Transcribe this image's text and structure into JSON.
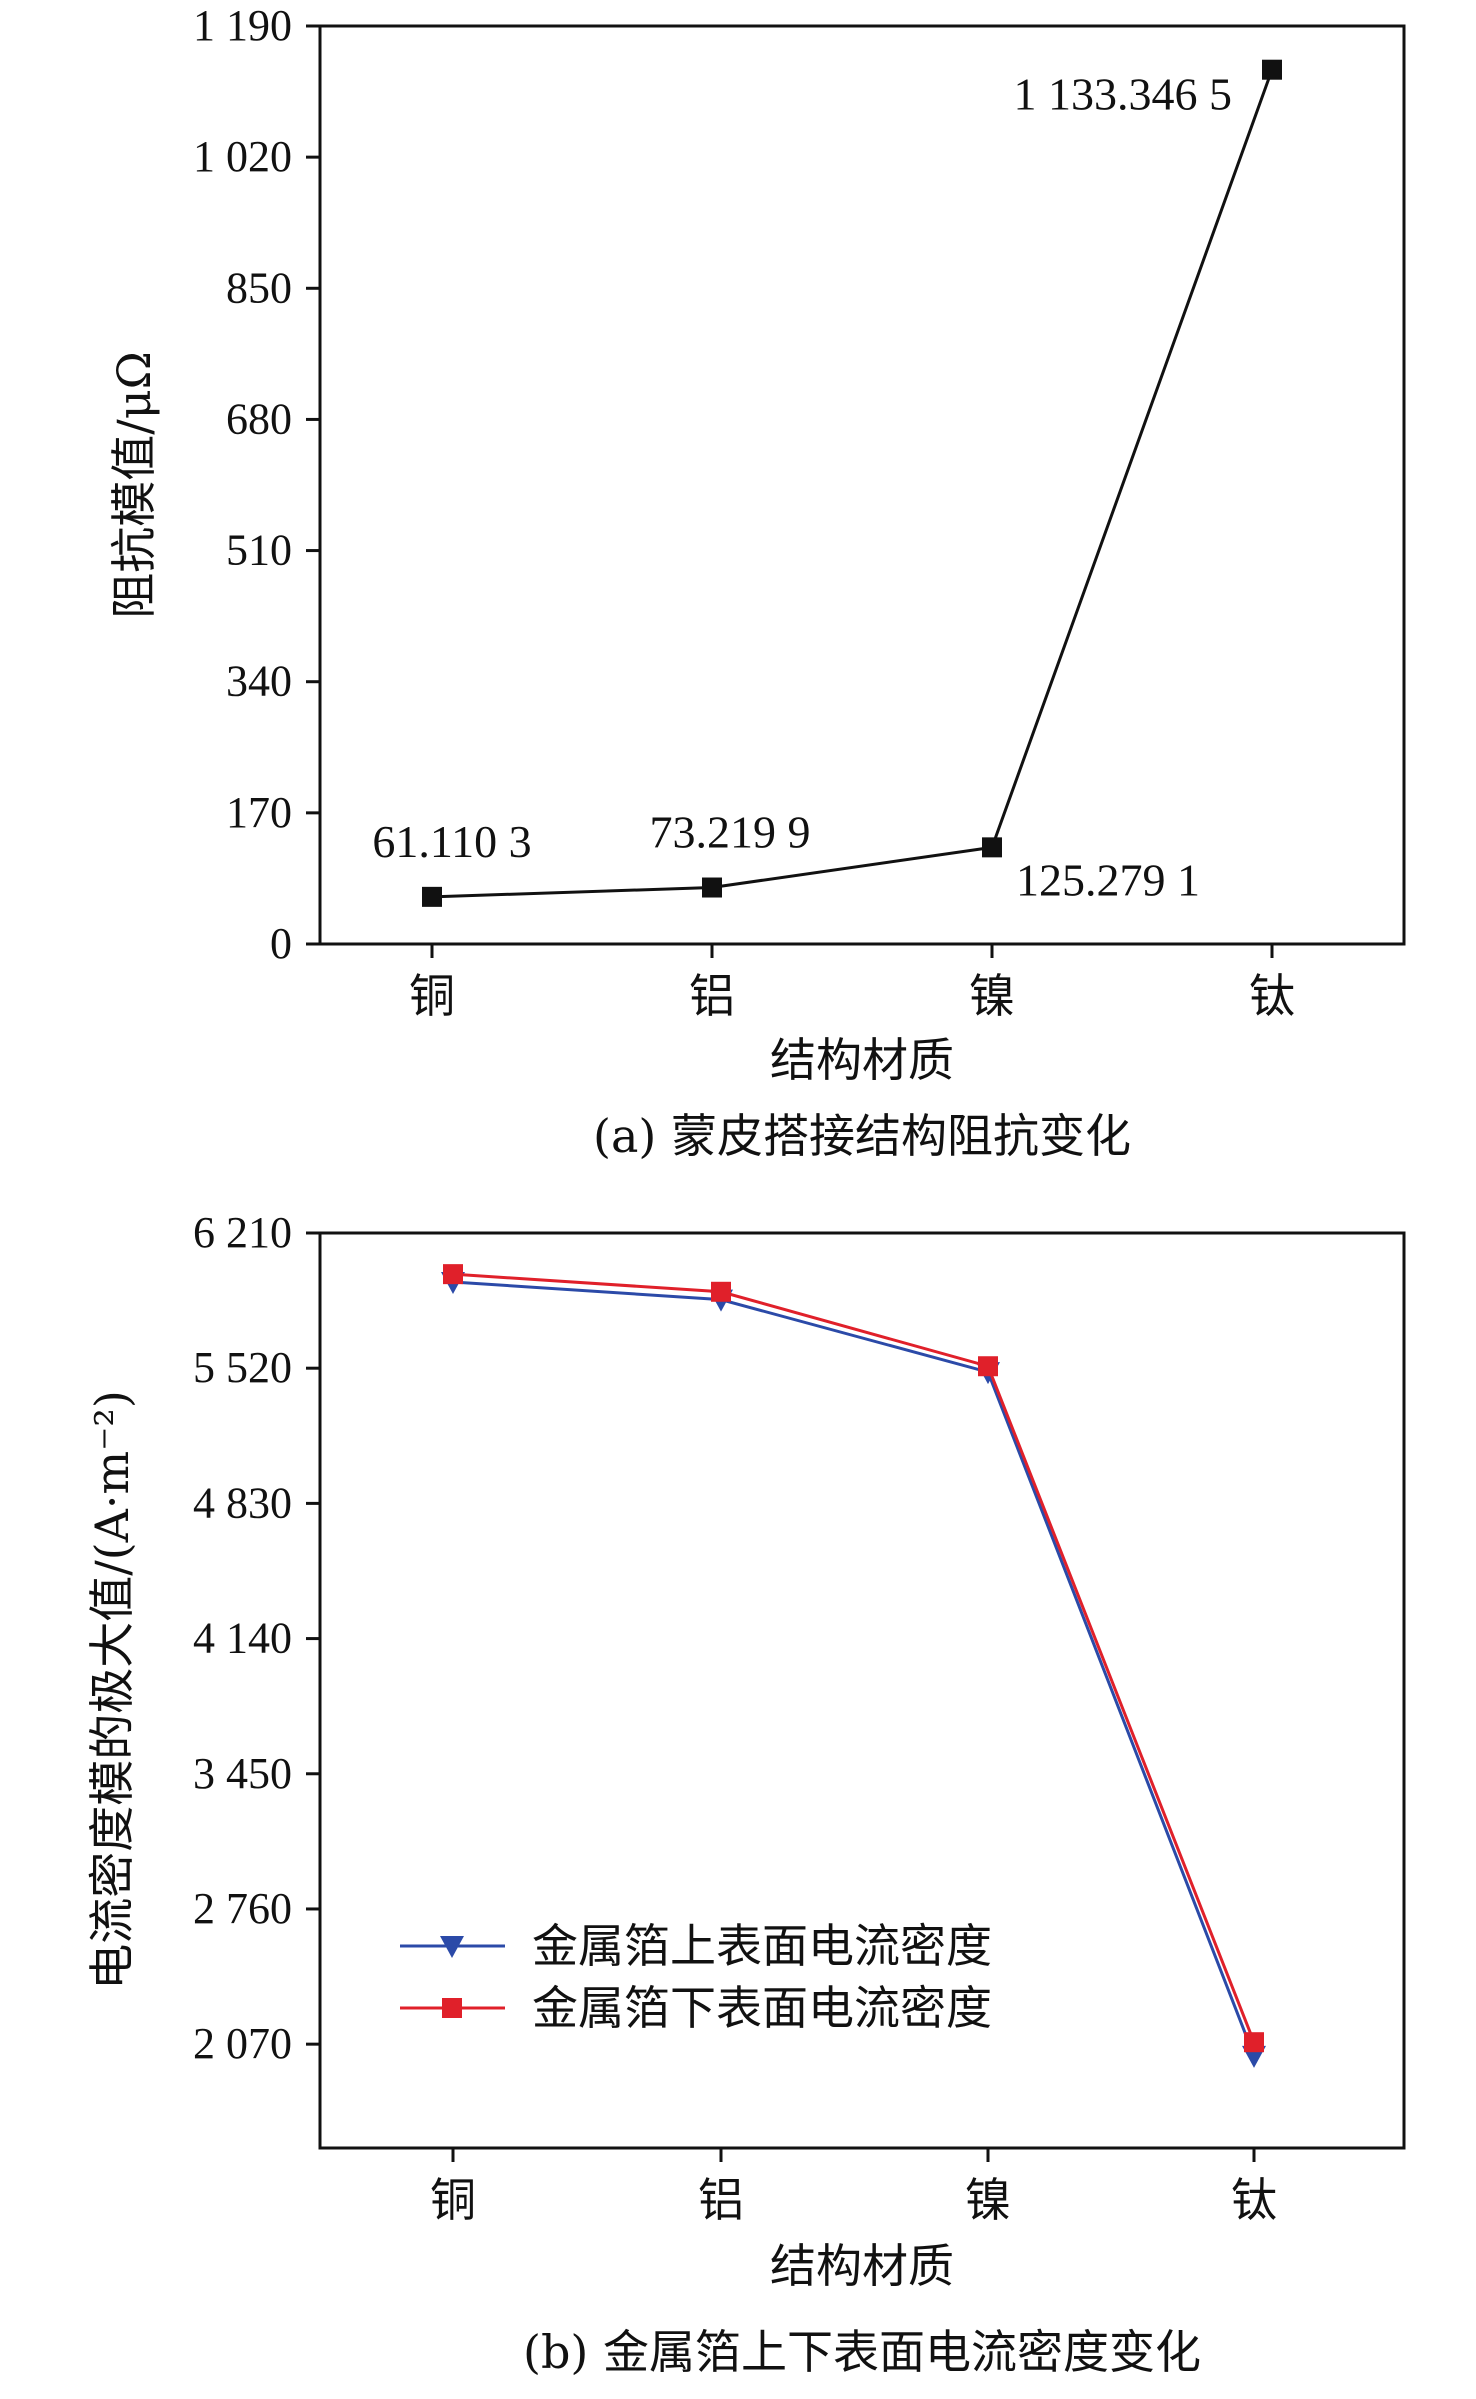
{
  "chart_data": [
    {
      "type": "line",
      "caption": "(a) 蒙皮搭接结构阻抗变化",
      "xlabel": "结构材质",
      "ylabel": "阻抗模值/μΩ",
      "categories": [
        "铜",
        "铝",
        "镍",
        "钛"
      ],
      "yticks": [
        0,
        170,
        340,
        510,
        680,
        850,
        1020,
        1190
      ],
      "ytick_labels": [
        "0",
        "170",
        "340",
        "510",
        "680",
        "850",
        "1 020",
        "1 190"
      ],
      "ylim": [
        0,
        1190
      ],
      "series": [
        {
          "values": [
            61.1103,
            73.2199,
            125.2791,
            1133.3465
          ],
          "data_labels": [
            "61.110 3",
            "73.219 9",
            "125.279 1",
            "1 133.346 5"
          ],
          "color": "#111111",
          "marker": "square"
        }
      ],
      "grid": false
    },
    {
      "type": "line",
      "caption": "(b) 金属箔上下表面电流密度变化",
      "xlabel": "结构材质",
      "ylabel": "电流密度模的极大值/(A·m⁻²)",
      "categories": [
        "铜",
        "铝",
        "镍",
        "钛"
      ],
      "yticks": [
        2070,
        2760,
        3450,
        4140,
        4830,
        5520,
        6210
      ],
      "ytick_labels": [
        "2 070",
        "2 760",
        "3 450",
        "4 140",
        "4 830",
        "5 520",
        "6 210"
      ],
      "ylim": [
        1540,
        6210
      ],
      "legend": "center-left",
      "series": [
        {
          "name": "金属箔上表面电流密度",
          "values": [
            5960,
            5870,
            5500,
            2010
          ],
          "color": "#2b4aa8",
          "marker": "triangle-down"
        },
        {
          "name": "金属箔下表面电流密度",
          "values": [
            6000,
            5910,
            5530,
            2080
          ],
          "color": "#e0202a",
          "marker": "square"
        }
      ],
      "grid": false
    }
  ]
}
